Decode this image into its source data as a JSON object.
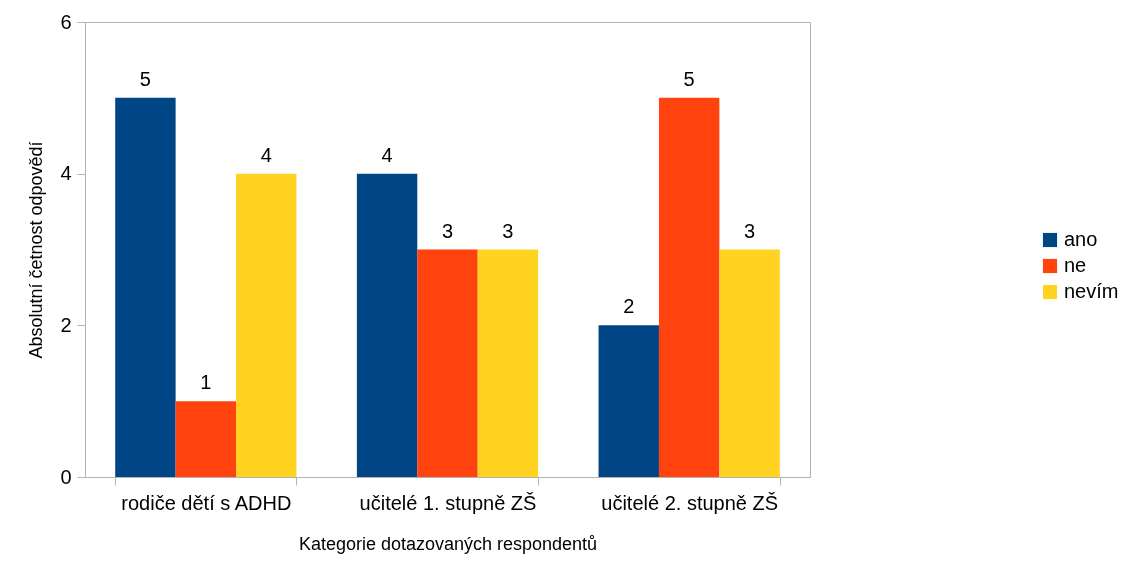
{
  "chart_data": {
    "type": "bar",
    "xlabel": "Kategorie dotazovaných respondentů",
    "ylabel": "Absolutní četnost odpovědí",
    "categories": [
      "rodiče dětí s ADHD",
      "učitelé 1. stupně ZŠ",
      "učitelé 2. stupně ZŠ"
    ],
    "series": [
      {
        "name": "ano",
        "color": "#004586",
        "values": [
          5,
          4,
          2
        ]
      },
      {
        "name": "ne",
        "color": "#ff420e",
        "values": [
          1,
          3,
          5
        ]
      },
      {
        "name": "nevím",
        "color": "#ffd320",
        "values": [
          4,
          3,
          3
        ]
      }
    ],
    "ylim": [
      0,
      6
    ],
    "yticks": [
      0,
      2,
      4,
      6
    ],
    "grid": false,
    "legend": "right",
    "data_labels": true
  }
}
